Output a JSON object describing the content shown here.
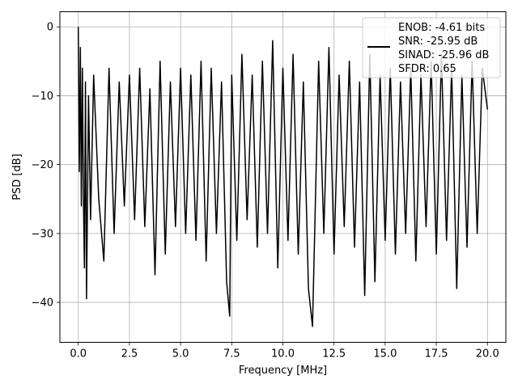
{
  "chart_data": {
    "type": "line",
    "xlabel": "Frequency [MHz]",
    "ylabel": "PSD [dB]",
    "xlim": [
      -0.9,
      20.9
    ],
    "ylim": [
      -45.8,
      2.2
    ],
    "x_ticks": [
      0.0,
      2.5,
      5.0,
      7.5,
      10.0,
      12.5,
      15.0,
      17.5,
      20.0
    ],
    "x_tick_labels": [
      "0.0",
      "2.5",
      "5.0",
      "7.5",
      "10.0",
      "12.5",
      "15.0",
      "17.5",
      "20.0"
    ],
    "y_ticks": [
      0,
      -10,
      -20,
      -30,
      -40
    ],
    "y_tick_labels": [
      "0",
      "−10",
      "−20",
      "−30",
      "−40"
    ],
    "grid": true,
    "legend_position": "top-right",
    "line_color": "#000000",
    "series": [
      {
        "x": [
          0.0,
          0.05,
          0.1,
          0.15,
          0.2,
          0.25,
          0.3,
          0.35,
          0.4,
          0.5,
          0.6,
          0.75,
          1.0,
          1.25,
          1.5,
          1.75,
          2.0,
          2.25,
          2.5,
          2.75,
          3.0,
          3.25,
          3.5,
          3.75,
          4.0,
          4.25,
          4.5,
          4.75,
          5.0,
          5.25,
          5.5,
          5.75,
          6.0,
          6.25,
          6.5,
          6.75,
          7.0,
          7.25,
          7.4,
          7.5,
          7.75,
          8.0,
          8.25,
          8.5,
          8.75,
          9.0,
          9.25,
          9.5,
          9.75,
          10.0,
          10.25,
          10.5,
          10.75,
          11.0,
          11.25,
          11.45,
          11.75,
          12.0,
          12.25,
          12.5,
          12.75,
          13.0,
          13.25,
          13.5,
          13.75,
          14.0,
          14.25,
          14.5,
          14.75,
          15.0,
          15.25,
          15.5,
          15.75,
          16.0,
          16.25,
          16.5,
          16.75,
          17.0,
          17.25,
          17.5,
          17.75,
          18.0,
          18.25,
          18.5,
          18.75,
          19.0,
          19.25,
          19.5,
          19.75,
          20.0
        ],
        "y": [
          0.0,
          -21,
          -3,
          -26,
          -6,
          -25,
          -35,
          -8,
          -39.5,
          -10,
          -28,
          -7,
          -25,
          -34,
          -6,
          -30,
          -8,
          -26,
          -7,
          -28,
          -6,
          -29,
          -9,
          -36,
          -5,
          -33,
          -8,
          -29,
          -6,
          -30,
          -7,
          -31,
          -5,
          -34,
          -6,
          -30,
          -8,
          -37,
          -42,
          -7,
          -31,
          -4,
          -28,
          -7,
          -32,
          -5,
          -30,
          -2,
          -35,
          -6,
          -31,
          -4,
          -33,
          -8,
          -38,
          -43.5,
          -5,
          -30,
          -3,
          -33,
          -7,
          -29,
          -5,
          -32,
          -8,
          -39,
          -4,
          -37,
          -7,
          -31,
          -6,
          -33,
          -8,
          -30,
          -6,
          -34,
          -7,
          -29,
          -5,
          -33,
          -4,
          -31,
          -6,
          -38,
          -7,
          -32,
          -5,
          -30,
          -6,
          -12
        ]
      }
    ],
    "legend": [
      "ENOB: -4.61 bits",
      "SNR: -25.95 dB",
      "SINAD: -25.96 dB",
      "SFDR: 0.65"
    ]
  }
}
